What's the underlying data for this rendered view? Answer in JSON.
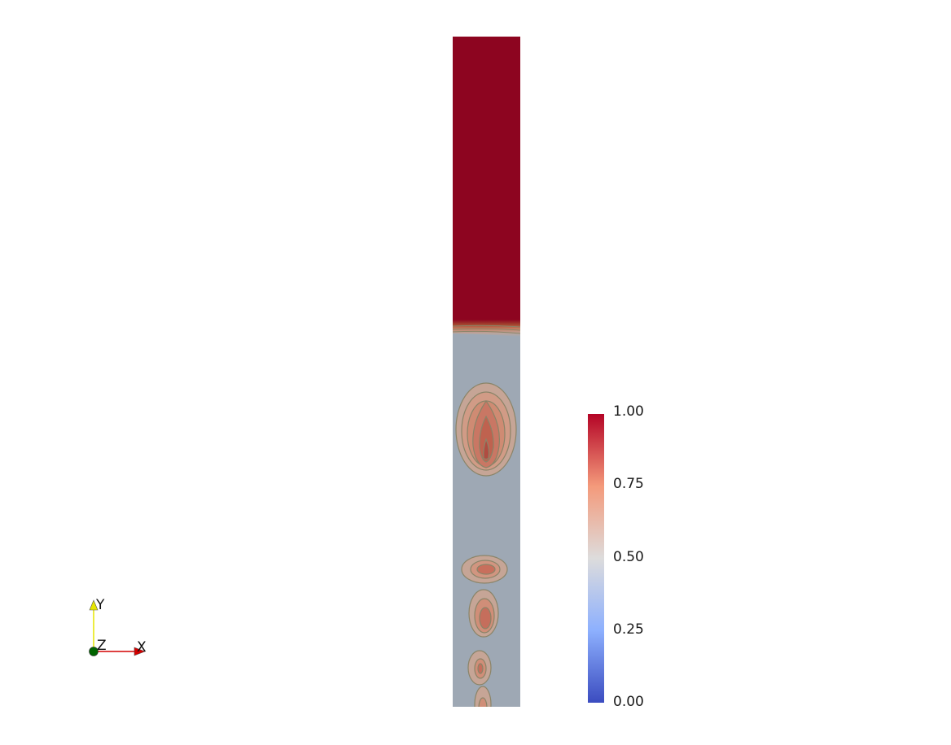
{
  "colorbar": {
    "ticks": [
      "1.00",
      "0.75",
      "0.50",
      "0.25",
      "0.00"
    ],
    "range": [
      0,
      1
    ],
    "colors": {
      "high": "#b40426",
      "upper": "#f08b6e",
      "mid": "#dddcdc",
      "lower": "#8db0fe",
      "low": "#3b4cc0"
    }
  },
  "field": {
    "upper_phase_color": "#8d0520",
    "lower_phase_color": "#9ea8b4",
    "contour_line_color": "#8a8468",
    "bubble_fill_colors": [
      "#c8a697",
      "#d29a84",
      "#cf8a72",
      "#c87662",
      "#bd5c4d"
    ]
  },
  "orientation_axes": {
    "x_label": "X",
    "y_label": "Y",
    "z_label": "Z",
    "x_color": "#d40000",
    "y_color": "#e6e600",
    "z_color": "#006400"
  }
}
